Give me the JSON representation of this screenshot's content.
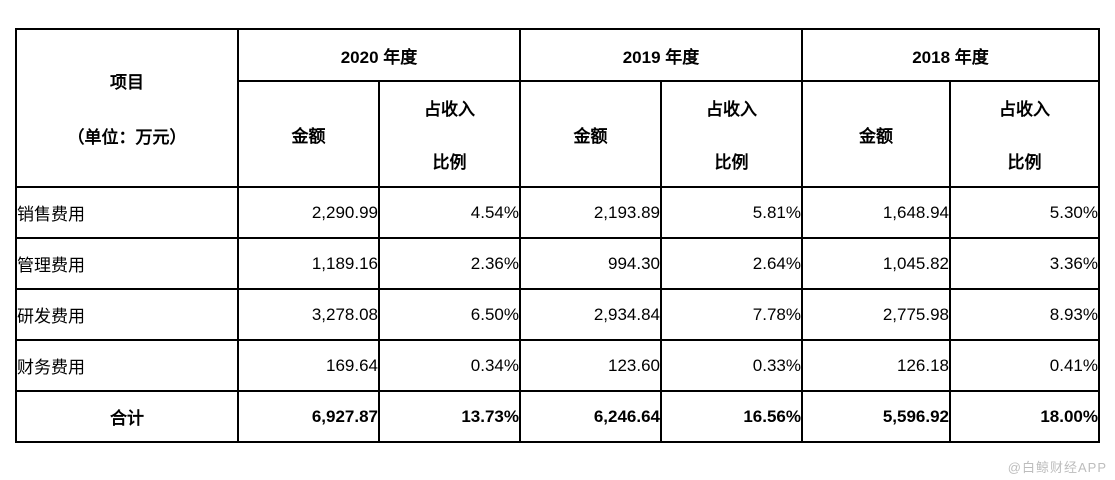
{
  "table": {
    "header": {
      "item_line1": "项目",
      "item_line2": "（单位：万元）",
      "year_groups": [
        "2020 年度",
        "2019 年度",
        "2018 年度"
      ],
      "amount_label": "金额",
      "ratio_line1": "占收入",
      "ratio_line2": "比例"
    },
    "rows": [
      {
        "label": "销售费用",
        "bold": false,
        "values": [
          "2,290.99",
          "4.54%",
          "2,193.89",
          "5.81%",
          "1,648.94",
          "5.30%"
        ]
      },
      {
        "label": "管理费用",
        "bold": false,
        "values": [
          "1,189.16",
          "2.36%",
          "994.30",
          "2.64%",
          "1,045.82",
          "3.36%"
        ]
      },
      {
        "label": "研发费用",
        "bold": false,
        "values": [
          "3,278.08",
          "6.50%",
          "2,934.84",
          "7.78%",
          "2,775.98",
          "8.93%"
        ]
      },
      {
        "label": "财务费用",
        "bold": false,
        "values": [
          "169.64",
          "0.34%",
          "123.60",
          "0.33%",
          "126.18",
          "0.41%"
        ]
      },
      {
        "label": "合计",
        "bold": true,
        "values": [
          "6,927.87",
          "13.73%",
          "6,246.64",
          "16.56%",
          "5,596.92",
          "18.00%"
        ]
      }
    ]
  },
  "watermark": {
    "text": "@白鲸财经APP"
  },
  "colors": {
    "border": "#000000",
    "text": "#000000",
    "background": "#ffffff"
  }
}
